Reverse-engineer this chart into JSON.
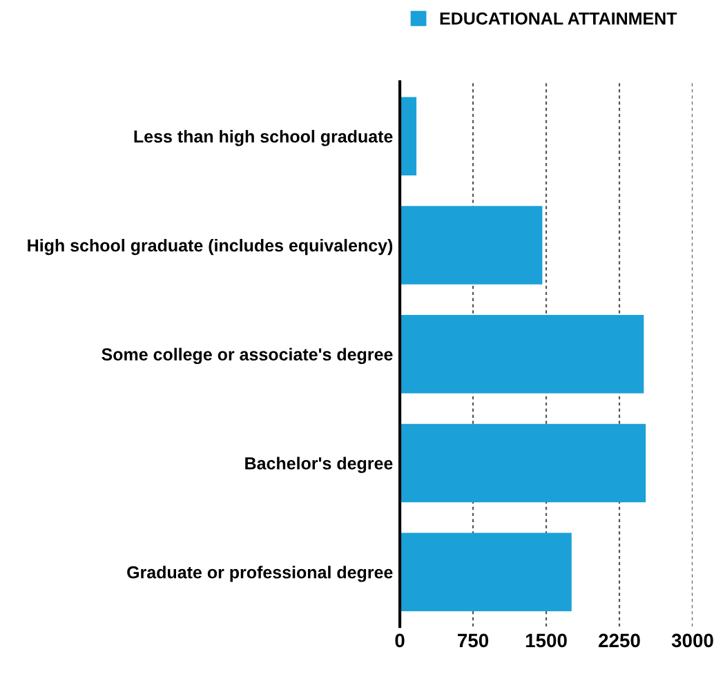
{
  "chart_data": {
    "type": "bar",
    "orientation": "horizontal",
    "categories": [
      "Less than high school graduate",
      "High school graduate (includes equivalency)",
      "Some college or associate's degree",
      "Bachelor's degree",
      "Graduate or professional degree"
    ],
    "series": [
      {
        "name": "EDUCATIONAL ATTAINMENT",
        "color": "#1ba1d8",
        "values": [
          170,
          1460,
          2500,
          2520,
          1760
        ]
      }
    ],
    "xlim": [
      0,
      3000
    ],
    "xticks": [
      0,
      750,
      1500,
      2250,
      3000
    ],
    "grid": "x",
    "legend": "top right"
  }
}
